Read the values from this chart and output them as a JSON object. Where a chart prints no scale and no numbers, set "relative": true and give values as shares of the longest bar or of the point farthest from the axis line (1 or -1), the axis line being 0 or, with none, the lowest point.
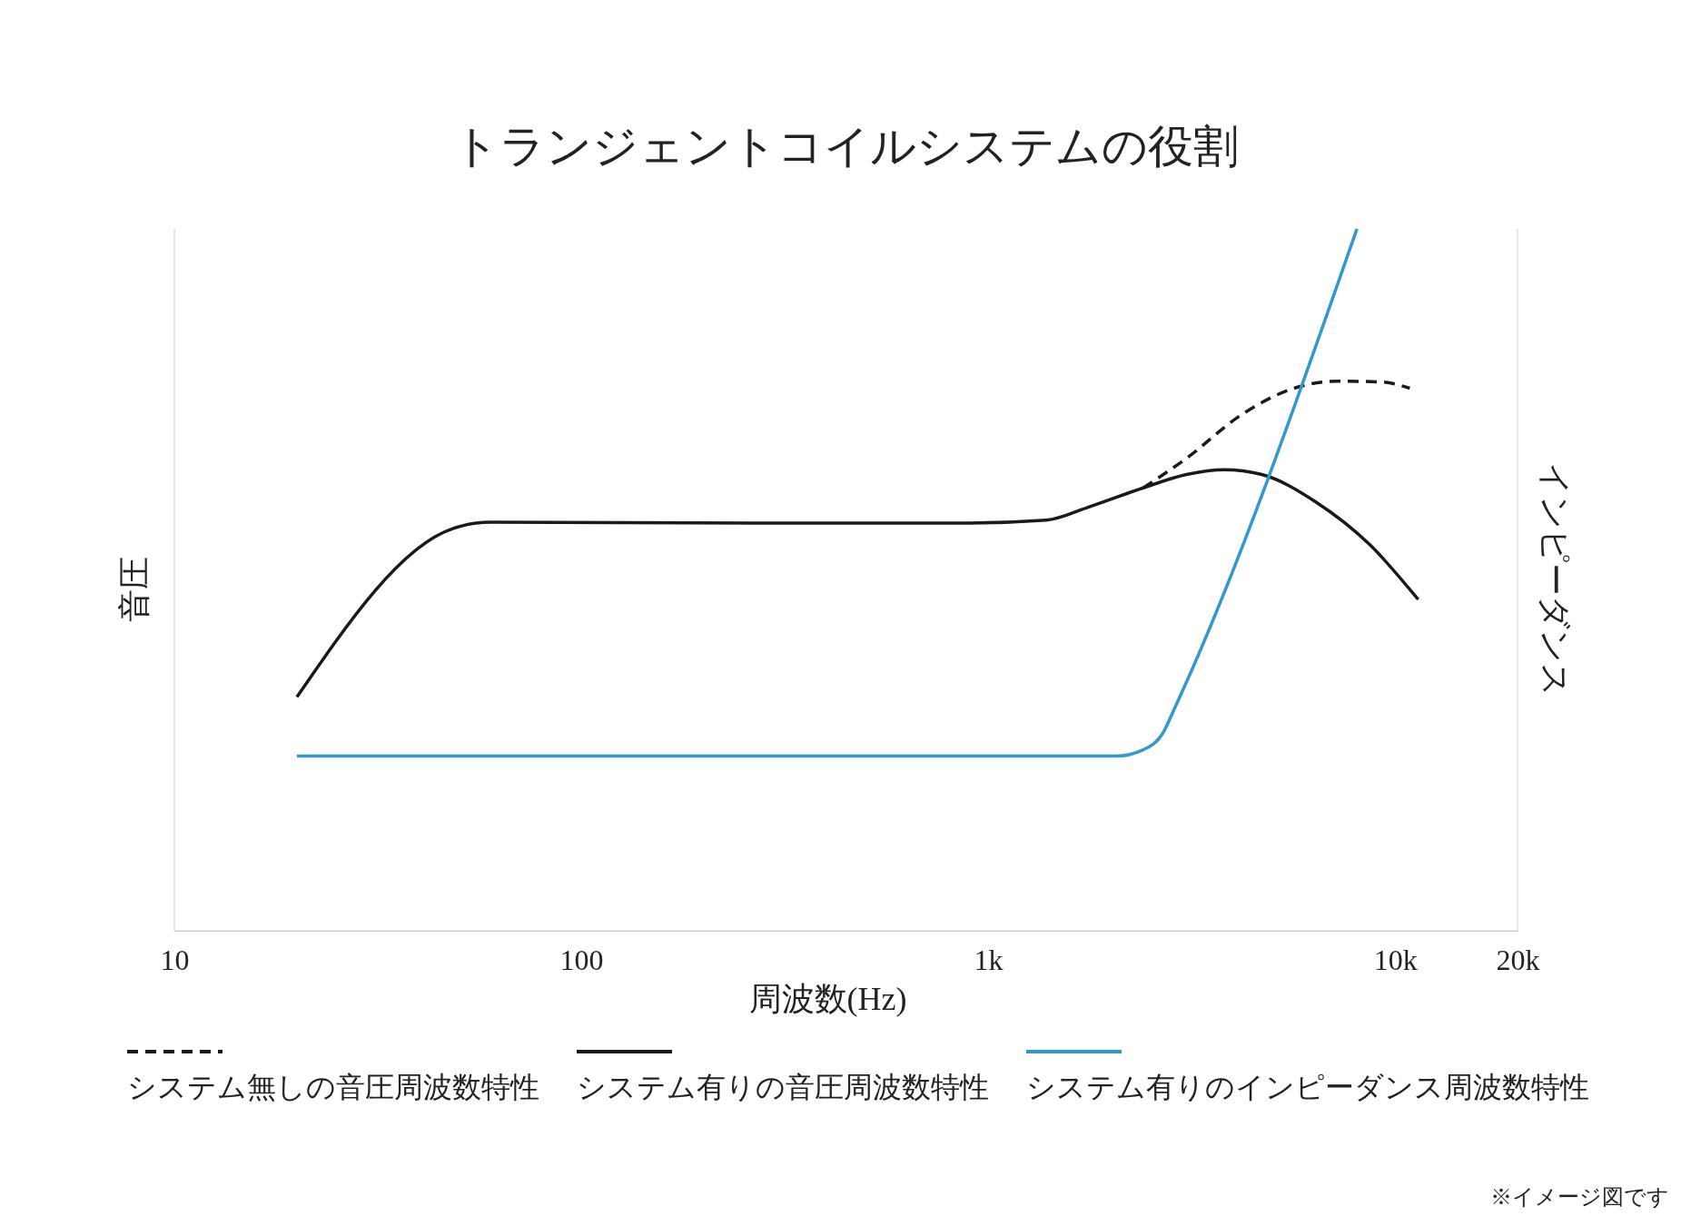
{
  "chart_data": {
    "type": "line",
    "title": "トランジェントコイルシステムの役割",
    "xlabel": "周波数(Hz)",
    "ylabel": "音圧",
    "y2label": "インピーダンス",
    "log": "x",
    "relative": true,
    "xlim": [
      10,
      20000
    ],
    "xticks": [
      10,
      100,
      {
        "value": 1000,
        "label": "1k"
      },
      {
        "value": 10000,
        "label": "10k"
      },
      {
        "value": 20000,
        "label": "20k"
      }
    ],
    "legend": "bottom",
    "annotations": [
      "※イメージ図です"
    ],
    "series": [
      {
        "name": "システム無しの音圧周波数特性",
        "color": "#1a1a1a",
        "line_style": "dashed",
        "x": [
          2404,
          3070,
          4165,
          5650,
          7215,
          9210,
          10870
        ],
        "values": [
          0.631,
          0.673,
          0.734,
          0.773,
          0.783,
          0.782,
          0.773
        ]
      },
      {
        "name": "システム有りの音圧周波数特性",
        "color": "#1a1a1a",
        "line_style": "solid",
        "x": [
          20,
          48.3,
          59.8,
          267,
          905,
          1388,
          1772,
          2404,
          3070,
          3800,
          4706,
          6385,
          8670,
          11400
        ],
        "values": [
          0.333,
          0.573,
          0.582,
          0.581,
          0.581,
          0.585,
          0.604,
          0.631,
          0.65,
          0.657,
          0.65,
          0.611,
          0.55,
          0.472
        ]
      },
      {
        "name": "システム有りのインピーダンス周波数特性",
        "color": "#3399cc",
        "line_style": "solid",
        "x": [
          20,
          2065,
          2404,
          2684,
          2887,
          8060
        ],
        "values": [
          0.249,
          0.249,
          0.258,
          0.281,
          0.32,
          1
        ]
      }
    ]
  }
}
